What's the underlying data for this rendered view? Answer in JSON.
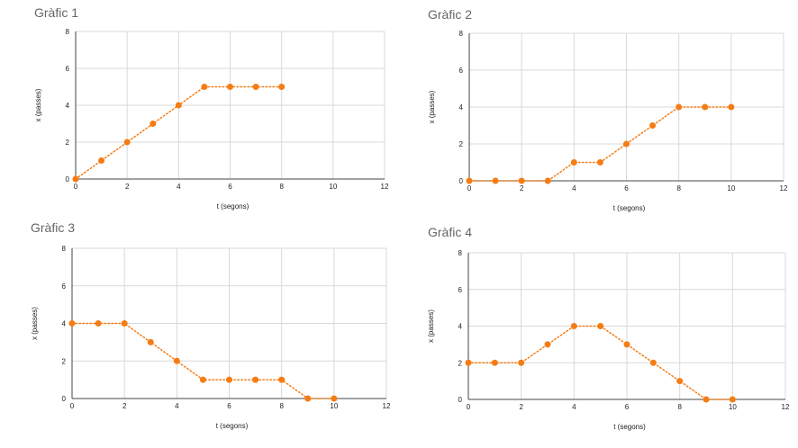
{
  "accent_color": "#f57c14",
  "grid_color": "#d9d9d9",
  "axis_color": "#444444",
  "chart_data": [
    {
      "type": "line",
      "title": "Gràfic 1",
      "xlabel": "t (segons)",
      "ylabel": "x (passes)",
      "xlim": [
        0,
        12
      ],
      "ylim": [
        0,
        8
      ],
      "xticks": [
        "0",
        "2",
        "4",
        "6",
        "8",
        "10",
        "12"
      ],
      "yticks": [
        "0",
        "2",
        "4",
        "6",
        "8"
      ],
      "grid": true,
      "line_style": "dotted",
      "x": [
        0,
        1,
        2,
        3,
        4,
        5,
        6,
        7,
        8
      ],
      "y": [
        0,
        1,
        2,
        3,
        4,
        5,
        5,
        5,
        5
      ]
    },
    {
      "type": "line",
      "title": "Gràfic 2",
      "xlabel": "t (segons)",
      "ylabel": "x (passes)",
      "xlim": [
        0,
        12
      ],
      "ylim": [
        0,
        8
      ],
      "xticks": [
        "0",
        "2",
        "4",
        "6",
        "8",
        "10",
        "12"
      ],
      "yticks": [
        "0",
        "2",
        "4",
        "6",
        "8"
      ],
      "grid": true,
      "line_style": "dotted",
      "x": [
        0,
        1,
        2,
        3,
        4,
        5,
        6,
        7,
        8,
        9,
        10
      ],
      "y": [
        0,
        0,
        0,
        0,
        1,
        1,
        2,
        3,
        4,
        4,
        4
      ]
    },
    {
      "type": "line",
      "title": "Gràfic 3",
      "xlabel": "t (segons)",
      "ylabel": "x (passes)",
      "xlim": [
        0,
        12
      ],
      "ylim": [
        0,
        8
      ],
      "xticks": [
        "0",
        "2",
        "4",
        "6",
        "8",
        "10",
        "12"
      ],
      "yticks": [
        "0",
        "2",
        "4",
        "6",
        "8"
      ],
      "grid": true,
      "line_style": "dotted",
      "x": [
        0,
        1,
        2,
        3,
        4,
        5,
        6,
        7,
        8,
        9,
        10
      ],
      "y": [
        4,
        4,
        4,
        3,
        2,
        1,
        1,
        1,
        1,
        0,
        0
      ]
    },
    {
      "type": "line",
      "title": "Gràfic 4",
      "xlabel": "t (segons)",
      "ylabel": "x (passes)",
      "xlim": [
        0,
        12
      ],
      "ylim": [
        0,
        8
      ],
      "xticks": [
        "0",
        "2",
        "4",
        "6",
        "8",
        "10",
        "12"
      ],
      "yticks": [
        "0",
        "2",
        "4",
        "6",
        "8"
      ],
      "grid": true,
      "line_style": "dotted",
      "x": [
        0,
        1,
        2,
        3,
        4,
        5,
        6,
        7,
        8,
        9,
        10
      ],
      "y": [
        2,
        2,
        2,
        3,
        4,
        4,
        3,
        2,
        1,
        0,
        0
      ]
    }
  ]
}
